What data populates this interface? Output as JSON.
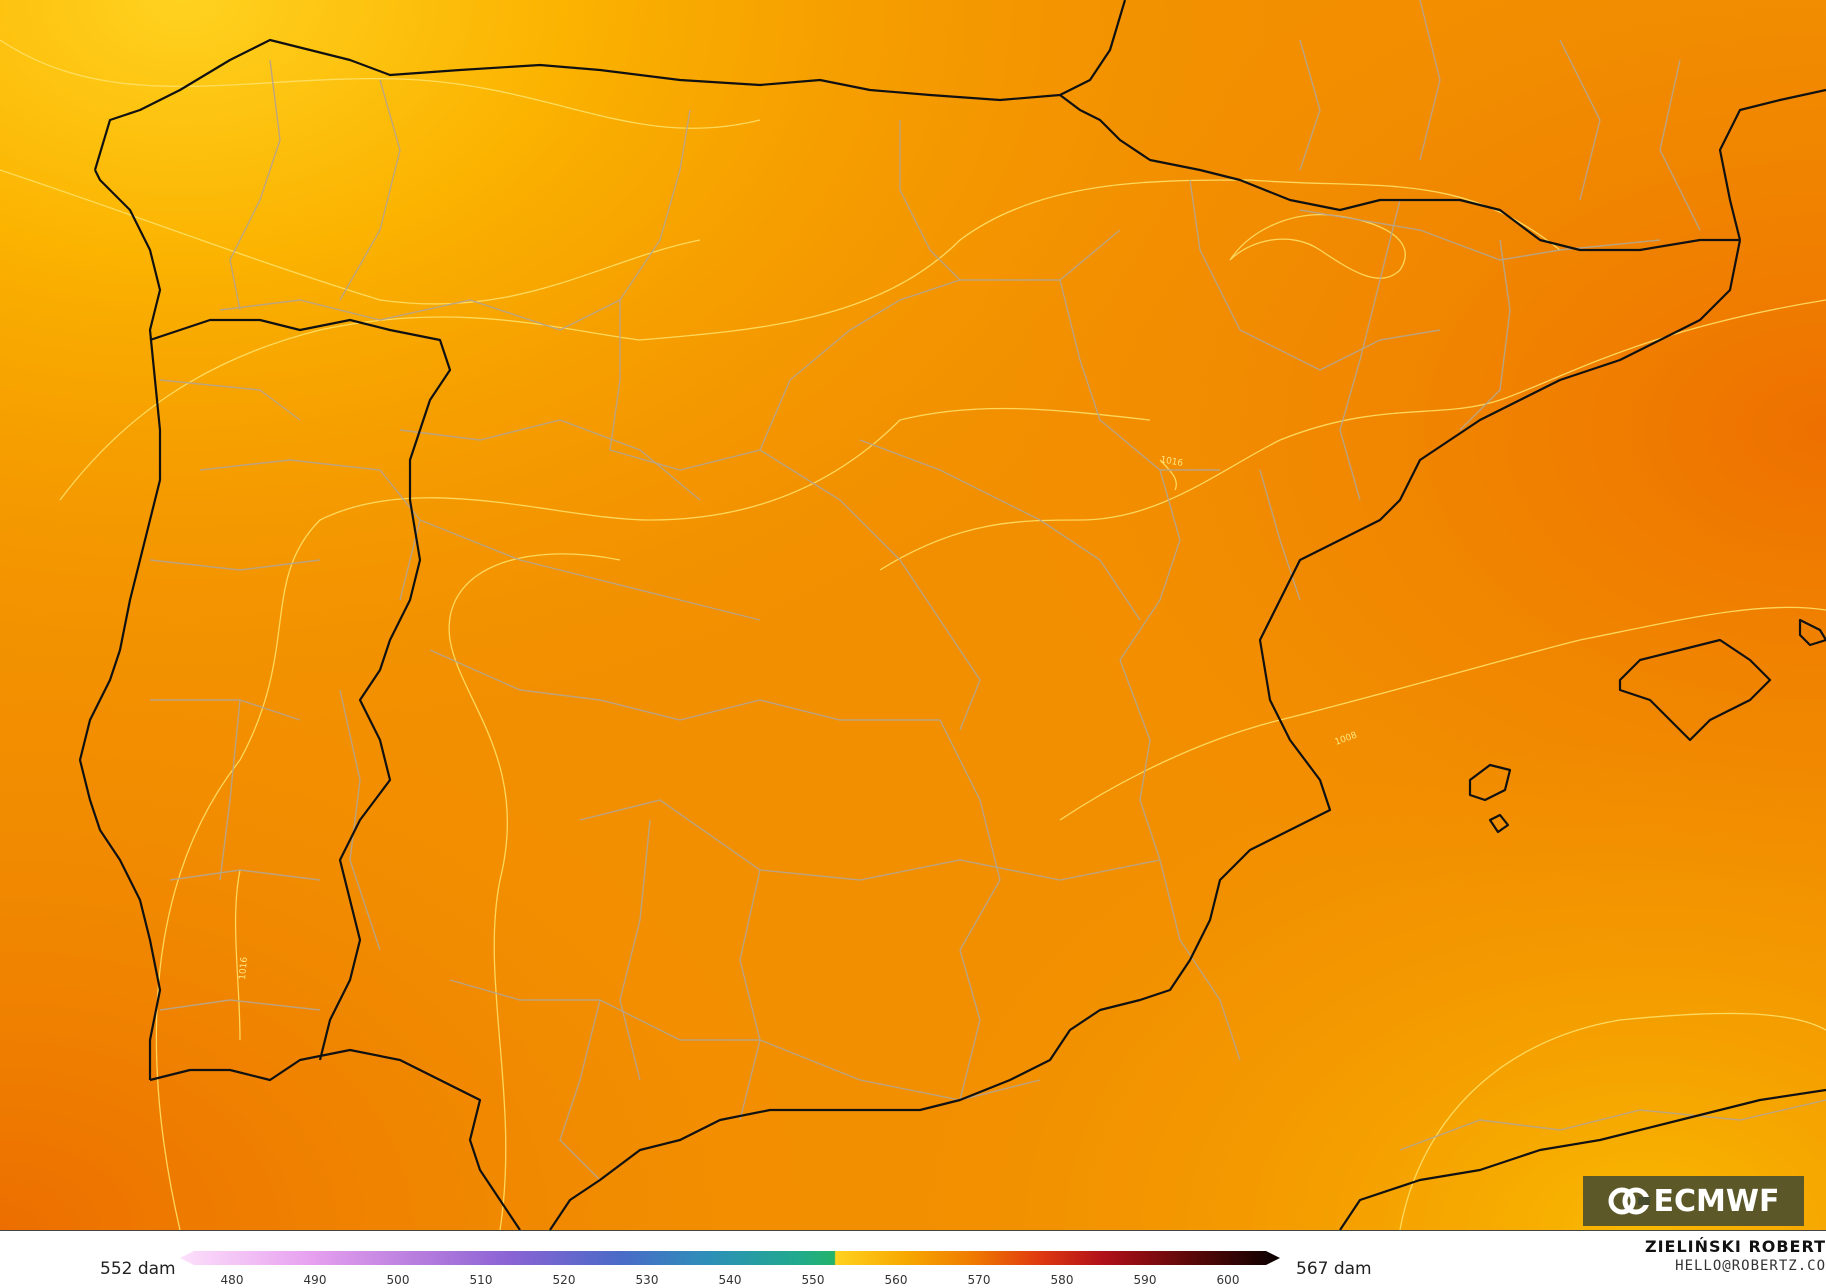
{
  "colorbar": {
    "min_label": "552 dam",
    "max_label": "567 dam",
    "ticks": [
      "480",
      "490",
      "500",
      "510",
      "520",
      "530",
      "540",
      "550",
      "560",
      "570",
      "580",
      "590",
      "600"
    ]
  },
  "credit": {
    "author": "ZIELIŃSKI ROBERT",
    "email": "HELLO@ROBERTZ.CO"
  },
  "logo": {
    "text": "ECMWF"
  },
  "isobars": [
    "1016",
    "1016",
    "1008",
    "1016"
  ],
  "colors": {
    "field_light": "#f7a800",
    "field_mid": "#f28c00",
    "field_dark": "#ee7700",
    "coast": "#111111",
    "borders": "#b7a48a",
    "isobar": "#ffe066"
  }
}
